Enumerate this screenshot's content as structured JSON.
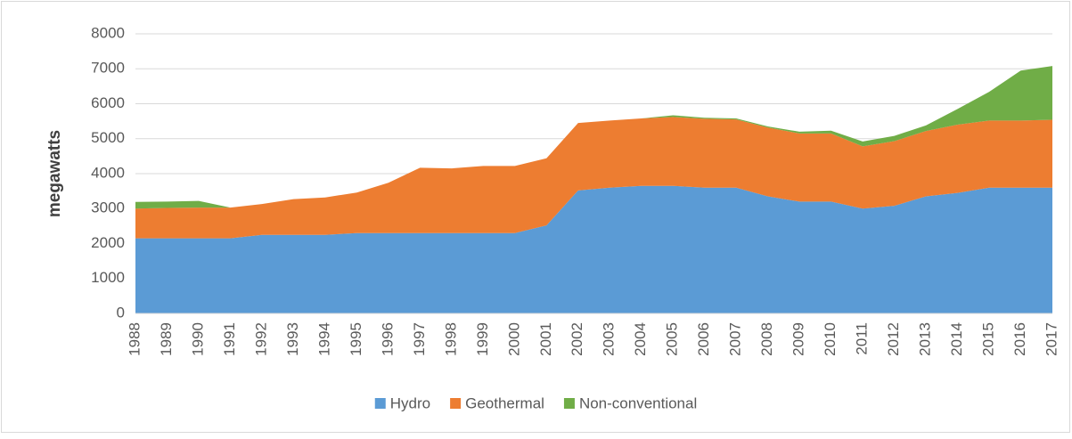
{
  "chart_data": {
    "type": "stacked-area",
    "y_label": "megawatts",
    "categories": [
      "1988",
      "1989",
      "1990",
      "1991",
      "1992",
      "1993",
      "1994",
      "1995",
      "1996",
      "1997",
      "1998",
      "1999",
      "2000",
      "2001",
      "2002",
      "2003",
      "2004",
      "2005",
      "2006",
      "2007",
      "2008",
      "2009",
      "2010",
      "2011",
      "2012",
      "2013",
      "2014",
      "2015",
      "2016",
      "2017"
    ],
    "series": [
      {
        "name": "Hydro",
        "color": "#5b9bd5",
        "values": [
          2150,
          2150,
          2150,
          2150,
          2250,
          2250,
          2250,
          2300,
          2300,
          2300,
          2300,
          2300,
          2300,
          2520,
          3520,
          3600,
          3650,
          3650,
          3600,
          3600,
          3350,
          3200,
          3200,
          3000,
          3080,
          3350,
          3450,
          3600,
          3600,
          3600
        ]
      },
      {
        "name": "Geothermal",
        "color": "#ed7d31",
        "values": [
          850,
          870,
          880,
          880,
          880,
          1020,
          1070,
          1160,
          1440,
          1870,
          1850,
          1920,
          1920,
          1920,
          1930,
          1920,
          1930,
          1970,
          1970,
          1950,
          1970,
          1950,
          1950,
          1780,
          1850,
          1870,
          1950,
          1920,
          1920,
          1940
        ]
      },
      {
        "name": "Non-conventional",
        "color": "#70ad47",
        "values": [
          190,
          180,
          190,
          0,
          0,
          0,
          0,
          0,
          0,
          0,
          0,
          0,
          0,
          0,
          0,
          0,
          0,
          50,
          30,
          30,
          30,
          50,
          80,
          140,
          150,
          160,
          450,
          820,
          1430,
          1540
        ]
      }
    ],
    "ylim": [
      0,
      8000
    ],
    "yticks": [
      0,
      1000,
      2000,
      3000,
      4000,
      5000,
      6000,
      7000,
      8000
    ],
    "grid": true,
    "legend": "bottom"
  }
}
